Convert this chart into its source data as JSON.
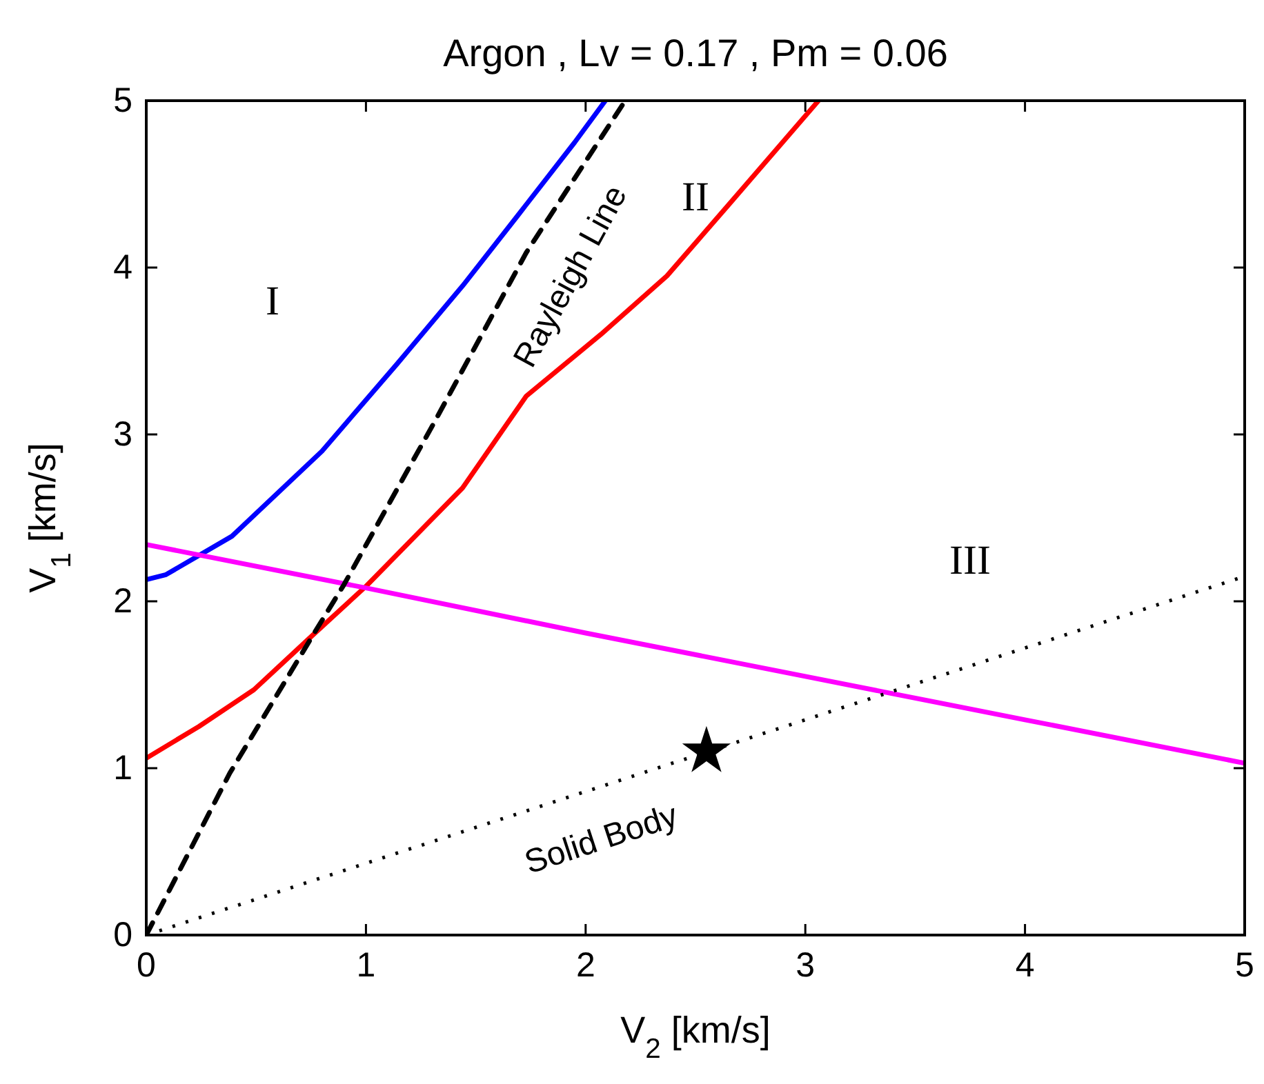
{
  "chart_data": {
    "type": "line",
    "title": "Argon ,  Lv = 0.17 ,  Pm = 0.06",
    "xlabel": "V$_{2}$ [km/s]",
    "ylabel": "V$_{1}$ [km/s]",
    "xlim": [
      0,
      5
    ],
    "ylim": [
      0,
      5
    ],
    "xticks": [
      0,
      1,
      2,
      3,
      4,
      5
    ],
    "yticks": [
      0,
      1,
      2,
      3,
      4,
      5
    ],
    "marker": "none",
    "series": [
      {
        "color": "#0000ff",
        "line_style": "solid",
        "x": [
          0,
          0.09,
          0.39,
          0.8,
          1.14,
          1.44,
          1.69,
          1.95,
          2.09
        ],
        "values": [
          2.13,
          2.16,
          2.39,
          2.9,
          3.42,
          3.89,
          4.31,
          4.75,
          5
        ]
      },
      {
        "color": "#ff0000",
        "line_style": "solid",
        "x": [
          0,
          0.24,
          0.49,
          0.76,
          1.0,
          1.44,
          1.73,
          2.07,
          2.37,
          2.66,
          3.06
        ],
        "values": [
          1.06,
          1.25,
          1.47,
          1.8,
          2.09,
          2.68,
          3.23,
          3.6,
          3.95,
          4.39,
          5
        ]
      },
      {
        "color": "#ff00ff",
        "line_style": "solid",
        "x": [
          0,
          1,
          2,
          3,
          4,
          5
        ],
        "values": [
          2.34,
          2.08,
          1.81,
          1.55,
          1.29,
          1.03
        ]
      },
      {
        "color": "#000000",
        "line_style": "dashed",
        "x": [
          0,
          0.38,
          0.76,
          0.9,
          1.31,
          1.73,
          2.18
        ],
        "values": [
          0,
          0.97,
          1.8,
          2.1,
          3.07,
          4.09,
          5
        ]
      },
      {
        "color": "#000000",
        "line_style": "dotted",
        "x": [
          0,
          5
        ],
        "values": [
          0,
          2.15
        ]
      },
      {
        "type": "scatter",
        "color": "#000000",
        "marker": "star",
        "x": [
          2.55
        ],
        "values": [
          1.1
        ]
      }
    ],
    "annotations": [
      "I",
      "II",
      "III",
      {
        "text": "Rayleigh Line",
        "x": 1.73,
        "y": 4.09
      },
      {
        "text": "Solid Body",
        "x": 2,
        "y": 0.86
      }
    ]
  }
}
